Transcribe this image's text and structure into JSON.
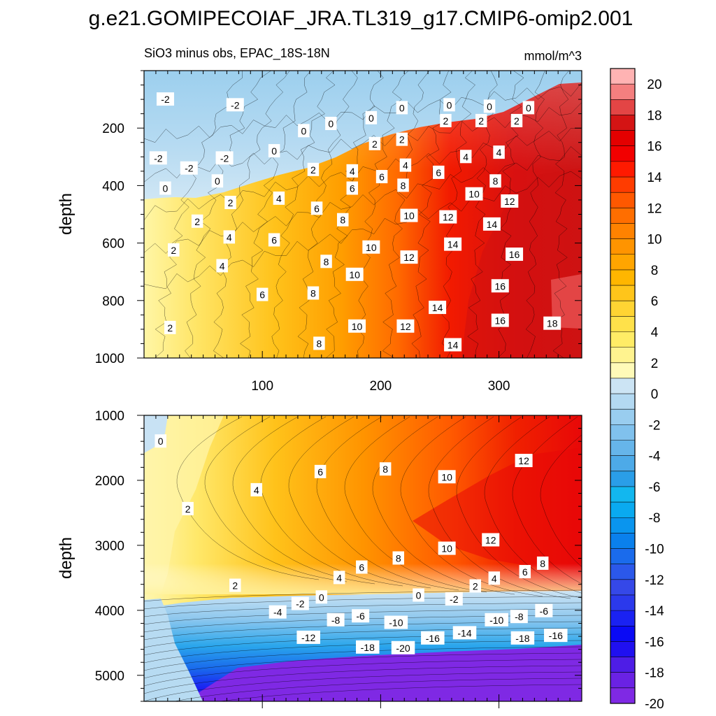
{
  "title": "g.e21.GOMIPECOIAF_JRA.TL319_g17.CMIP6-omip2.001",
  "units": "mmol/m^3",
  "chart_data": [
    {
      "type": "heatmap",
      "panel": "upper",
      "subtitle": "SiO3 minus obs, EPAC_18S-18N",
      "units": "mmol/m^3",
      "xlabel": "",
      "ylabel": "depth",
      "xlim": [
        0,
        370
      ],
      "ylim": [
        1000,
        0
      ],
      "xticks": [
        100,
        200,
        300
      ],
      "yticks": [
        200,
        400,
        600,
        800,
        1000
      ],
      "contour_labels": [
        {
          "x": 18,
          "y": 100,
          "v": -2
        },
        {
          "x": 77,
          "y": 120,
          "v": -2
        },
        {
          "x": 12,
          "y": 305,
          "v": -2
        },
        {
          "x": 38,
          "y": 340,
          "v": -2
        },
        {
          "x": 68,
          "y": 305,
          "v": -2
        },
        {
          "x": 18,
          "y": 410,
          "v": 0
        },
        {
          "x": 62,
          "y": 385,
          "v": 0
        },
        {
          "x": 110,
          "y": 280,
          "v": 0
        },
        {
          "x": 135,
          "y": 210,
          "v": 0
        },
        {
          "x": 158,
          "y": 185,
          "v": 0
        },
        {
          "x": 192,
          "y": 165,
          "v": 0
        },
        {
          "x": 218,
          "y": 130,
          "v": 0
        },
        {
          "x": 258,
          "y": 120,
          "v": 0
        },
        {
          "x": 292,
          "y": 125,
          "v": 0
        },
        {
          "x": 325,
          "y": 130,
          "v": 0
        },
        {
          "x": 73,
          "y": 460,
          "v": 2
        },
        {
          "x": 45,
          "y": 525,
          "v": 2
        },
        {
          "x": 25,
          "y": 625,
          "v": 2
        },
        {
          "x": 22,
          "y": 895,
          "v": 2
        },
        {
          "x": 195,
          "y": 255,
          "v": 2
        },
        {
          "x": 218,
          "y": 240,
          "v": 2
        },
        {
          "x": 255,
          "y": 175,
          "v": 2
        },
        {
          "x": 285,
          "y": 175,
          "v": 2
        },
        {
          "x": 315,
          "y": 175,
          "v": 2
        },
        {
          "x": 72,
          "y": 580,
          "v": 4
        },
        {
          "x": 66,
          "y": 680,
          "v": 4
        },
        {
          "x": 114,
          "y": 445,
          "v": 4
        },
        {
          "x": 176,
          "y": 350,
          "v": 4
        },
        {
          "x": 221,
          "y": 330,
          "v": 4
        },
        {
          "x": 272,
          "y": 300,
          "v": 4
        },
        {
          "x": 300,
          "y": 285,
          "v": 4
        },
        {
          "x": 143,
          "y": 345,
          "v": 2
        },
        {
          "x": 110,
          "y": 590,
          "v": 6
        },
        {
          "x": 100,
          "y": 780,
          "v": 6
        },
        {
          "x": 146,
          "y": 480,
          "v": 6
        },
        {
          "x": 176,
          "y": 410,
          "v": 6
        },
        {
          "x": 201,
          "y": 370,
          "v": 6
        },
        {
          "x": 249,
          "y": 355,
          "v": 6
        },
        {
          "x": 143,
          "y": 775,
          "v": 8
        },
        {
          "x": 148,
          "y": 950,
          "v": 8
        },
        {
          "x": 154,
          "y": 665,
          "v": 8
        },
        {
          "x": 168,
          "y": 520,
          "v": 8
        },
        {
          "x": 219,
          "y": 400,
          "v": 8
        },
        {
          "x": 297,
          "y": 385,
          "v": 8
        },
        {
          "x": 192,
          "y": 615,
          "v": 10
        },
        {
          "x": 178,
          "y": 710,
          "v": 10
        },
        {
          "x": 180,
          "y": 890,
          "v": 10
        },
        {
          "x": 224,
          "y": 505,
          "v": 10
        },
        {
          "x": 279,
          "y": 430,
          "v": 10
        },
        {
          "x": 224,
          "y": 650,
          "v": 12
        },
        {
          "x": 221,
          "y": 890,
          "v": 12
        },
        {
          "x": 257,
          "y": 510,
          "v": 12
        },
        {
          "x": 309,
          "y": 455,
          "v": 12
        },
        {
          "x": 261,
          "y": 605,
          "v": 14
        },
        {
          "x": 294,
          "y": 535,
          "v": 14
        },
        {
          "x": 248,
          "y": 825,
          "v": 14
        },
        {
          "x": 261,
          "y": 955,
          "v": 14
        },
        {
          "x": 313,
          "y": 640,
          "v": 16
        },
        {
          "x": 301,
          "y": 750,
          "v": 16
        },
        {
          "x": 301,
          "y": 870,
          "v": 16
        },
        {
          "x": 345,
          "y": 880,
          "v": 18
        }
      ]
    },
    {
      "type": "heatmap",
      "panel": "lower",
      "xlabel": "",
      "ylabel": "depth",
      "xlim": [
        0,
        370
      ],
      "ylim": [
        5400,
        1000
      ],
      "xticks": [
        100,
        200,
        300
      ],
      "yticks": [
        1000,
        2000,
        3000,
        4000,
        5000
      ],
      "contour_labels": [
        {
          "x": 14,
          "y": 1400,
          "v": 0
        },
        {
          "x": 37,
          "y": 2440,
          "v": 2
        },
        {
          "x": 95,
          "y": 2150,
          "v": 4
        },
        {
          "x": 149,
          "y": 1870,
          "v": 6
        },
        {
          "x": 204,
          "y": 1830,
          "v": 8
        },
        {
          "x": 256,
          "y": 1950,
          "v": 10
        },
        {
          "x": 321,
          "y": 1700,
          "v": 12
        },
        {
          "x": 293,
          "y": 2920,
          "v": 12
        },
        {
          "x": 256,
          "y": 3050,
          "v": 10
        },
        {
          "x": 215,
          "y": 3200,
          "v": 8
        },
        {
          "x": 184,
          "y": 3340,
          "v": 6
        },
        {
          "x": 165,
          "y": 3500,
          "v": 4
        },
        {
          "x": 77,
          "y": 3620,
          "v": 2
        },
        {
          "x": 280,
          "y": 3630,
          "v": 2
        },
        {
          "x": 296,
          "y": 3510,
          "v": 4
        },
        {
          "x": 322,
          "y": 3410,
          "v": 6
        },
        {
          "x": 337,
          "y": 3280,
          "v": 8
        },
        {
          "x": 150,
          "y": 3800,
          "v": 0
        },
        {
          "x": 232,
          "y": 3770,
          "v": 0
        },
        {
          "x": 132,
          "y": 3900,
          "v": -2
        },
        {
          "x": 262,
          "y": 3830,
          "v": -2
        },
        {
          "x": 113,
          "y": 4030,
          "v": -4
        },
        {
          "x": 162,
          "y": 4150,
          "v": -8
        },
        {
          "x": 183,
          "y": 4090,
          "v": -6
        },
        {
          "x": 213,
          "y": 4190,
          "v": -10
        },
        {
          "x": 139,
          "y": 4420,
          "v": -12
        },
        {
          "x": 189,
          "y": 4570,
          "v": -18
        },
        {
          "x": 219,
          "y": 4580,
          "v": -20
        },
        {
          "x": 244,
          "y": 4430,
          "v": -16
        },
        {
          "x": 271,
          "y": 4350,
          "v": -14
        },
        {
          "x": 298,
          "y": 4150,
          "v": -10
        },
        {
          "x": 317,
          "y": 4100,
          "v": -8
        },
        {
          "x": 338,
          "y": 4010,
          "v": -6
        },
        {
          "x": 320,
          "y": 4430,
          "v": -18
        },
        {
          "x": 348,
          "y": 4390,
          "v": -16
        }
      ]
    }
  ],
  "colorbar": {
    "labels": [
      "20",
      "18",
      "16",
      "14",
      "12",
      "10",
      "8",
      "6",
      "4",
      "2",
      "0",
      "-2",
      "-4",
      "-6",
      "-8",
      "-10",
      "-12",
      "-14",
      "-16",
      "-18",
      "-20"
    ],
    "colors": [
      "#ffb3b3",
      "#f47f7f",
      "#e34545",
      "#d41414",
      "#e40000",
      "#f20000",
      "#ff1a00",
      "#ff3c00",
      "#ff5800",
      "#ff6e00",
      "#ff8200",
      "#ff9400",
      "#ffa500",
      "#ffb600",
      "#ffc51a",
      "#ffd433",
      "#ffe14a",
      "#ffec66",
      "#fff38f",
      "#fffab8",
      "#cce4f4",
      "#b3d9f2",
      "#99cdef",
      "#80c1ed",
      "#66b5ea",
      "#4daae8",
      "#2a9ee8",
      "#12b7ef",
      "#0aaaf0",
      "#0a95ee",
      "#0a80ec",
      "#1a6bec",
      "#2b58ea",
      "#3548e8",
      "#2b39ec",
      "#1a22f2",
      "#0a0af5",
      "#2010f0",
      "#4e1de6",
      "#6a22e4",
      "#7f29e4"
    ]
  }
}
